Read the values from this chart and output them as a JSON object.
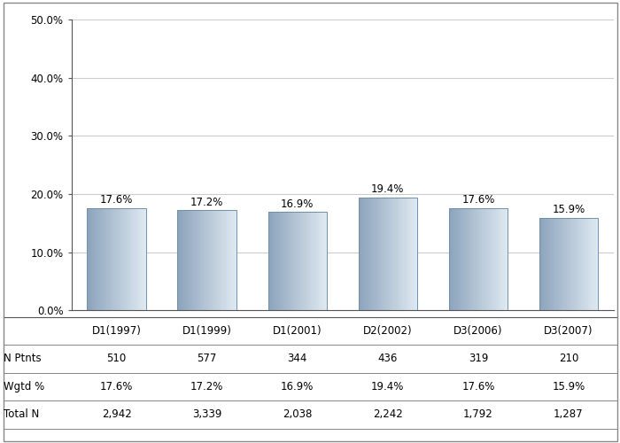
{
  "categories": [
    "D1(1997)",
    "D1(1999)",
    "D1(2001)",
    "D2(2002)",
    "D3(2006)",
    "D3(2007)"
  ],
  "values": [
    17.6,
    17.2,
    16.9,
    19.4,
    17.6,
    15.9
  ],
  "bar_labels": [
    "17.6%",
    "17.2%",
    "16.9%",
    "19.4%",
    "17.6%",
    "15.9%"
  ],
  "n_ptnts": [
    "510",
    "577",
    "344",
    "436",
    "319",
    "210"
  ],
  "wgtd_pct": [
    "17.6%",
    "17.2%",
    "16.9%",
    "19.4%",
    "17.6%",
    "15.9%"
  ],
  "total_n": [
    "2,942",
    "3,339",
    "2,038",
    "2,242",
    "1,792",
    "1,287"
  ],
  "ylim": [
    0,
    50
  ],
  "yticks": [
    0,
    10,
    20,
    30,
    40,
    50
  ],
  "ytick_labels": [
    "0.0%",
    "10.0%",
    "20.0%",
    "30.0%",
    "40.0%",
    "50.0%"
  ],
  "bar_color_left": "#8da4bc",
  "bar_color_mid": "#c8d8e8",
  "bar_color_right": "#dce8f0",
  "background_color": "#ffffff",
  "plot_bg_color": "#ffffff",
  "grid_color": "#cccccc",
  "border_color": "#555555",
  "row_labels": [
    "N Ptnts",
    "Wgtd %",
    "Total N"
  ],
  "tick_fontsize": 8.5,
  "bar_label_fontsize": 8.5,
  "table_fontsize": 8.5
}
